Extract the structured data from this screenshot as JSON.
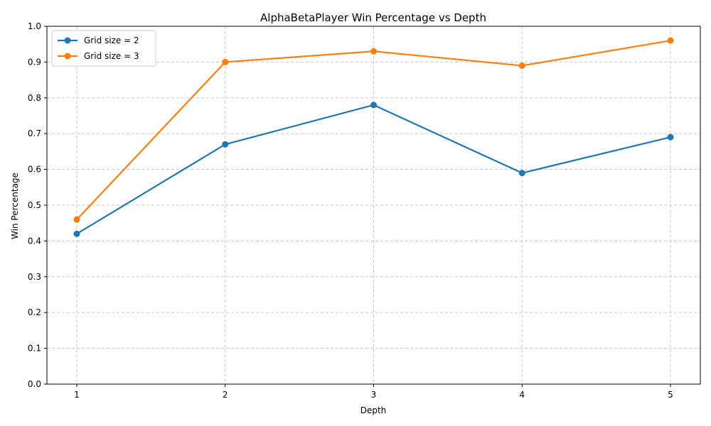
{
  "chart_data": {
    "type": "line",
    "title": "AlphaBetaPlayer Win Percentage vs Depth",
    "xlabel": "Depth",
    "ylabel": "Win Percentage",
    "x": [
      1,
      2,
      3,
      4,
      5
    ],
    "x_tick_labels": [
      "1",
      "2",
      "3",
      "4",
      "5"
    ],
    "ylim": [
      0.0,
      1.0
    ],
    "y_ticks": [
      "0.0",
      "0.1",
      "0.2",
      "0.3",
      "0.4",
      "0.5",
      "0.6",
      "0.7",
      "0.8",
      "0.9",
      "1.0"
    ],
    "grid": true,
    "legend_position": "top-left",
    "series": [
      {
        "name": "Grid size = 2",
        "color": "#1f77b4",
        "values": [
          0.42,
          0.67,
          0.78,
          0.59,
          0.69
        ]
      },
      {
        "name": "Grid size = 3",
        "color": "#ff7f0e",
        "values": [
          0.46,
          0.9,
          0.93,
          0.89,
          0.96
        ]
      }
    ]
  }
}
